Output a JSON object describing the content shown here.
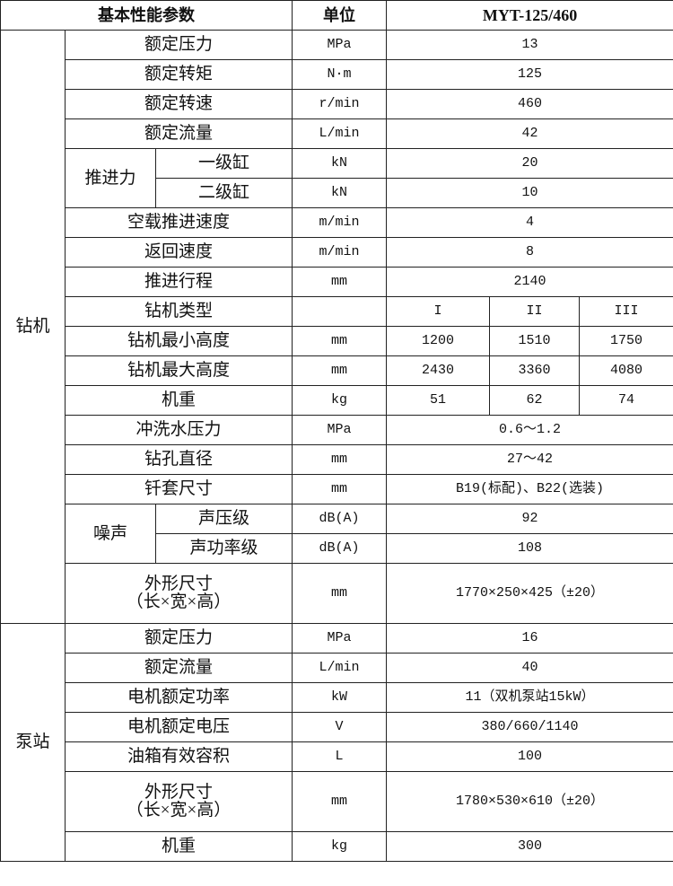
{
  "header": {
    "param": "基本性能参数",
    "unit": "单位",
    "model": "MYT-125/460"
  },
  "drill": {
    "label": "钻机",
    "rows": [
      {
        "name": "额定压力",
        "unit": "MPa",
        "values": [
          "13"
        ]
      },
      {
        "name": "额定转矩",
        "unit": "N·m",
        "values": [
          "125"
        ]
      },
      {
        "name": "额定转速",
        "unit": "r/min",
        "values": [
          "460"
        ]
      },
      {
        "name": "额定流量",
        "unit": "L/min",
        "values": [
          "42"
        ]
      },
      {
        "group": "推进力",
        "items": [
          {
            "name": "一级缸",
            "unit": "kN",
            "values": [
              "20"
            ]
          },
          {
            "name": "二级缸",
            "unit": "kN",
            "values": [
              "10"
            ]
          }
        ]
      },
      {
        "name": "空载推进速度",
        "unit": "m/min",
        "values": [
          "4"
        ]
      },
      {
        "name": "返回速度",
        "unit": "m/min",
        "values": [
          "8"
        ]
      },
      {
        "name": "推进行程",
        "unit": "mm",
        "values": [
          "2140"
        ]
      },
      {
        "name": "钻机类型",
        "unit": "",
        "values": [
          "I",
          "II",
          "III"
        ]
      },
      {
        "name": "钻机最小高度",
        "unit": "mm",
        "values": [
          "1200",
          "1510",
          "1750"
        ]
      },
      {
        "name": "钻机最大高度",
        "unit": "mm",
        "values": [
          "2430",
          "3360",
          "4080"
        ]
      },
      {
        "name": "机重",
        "unit": "kg",
        "values": [
          "51",
          "62",
          "74"
        ]
      },
      {
        "name": "冲洗水压力",
        "unit": "MPa",
        "values": [
          "0.6～1.2"
        ]
      },
      {
        "name": "钻孔直径",
        "unit": "mm",
        "values": [
          "27～42"
        ]
      },
      {
        "name": "钎套尺寸",
        "unit": "mm",
        "values": [
          "B19(标配)、B22(选装)"
        ]
      },
      {
        "group": "噪声",
        "items": [
          {
            "name": "声压级",
            "unit": "dB(A)",
            "values": [
              "92"
            ]
          },
          {
            "name": "声功率级",
            "unit": "dB(A)",
            "values": [
              "108"
            ]
          }
        ]
      },
      {
        "name": "外形尺寸",
        "name2": "（长×宽×高）",
        "unit": "mm",
        "values": [
          "1770×250×425（±20）"
        ]
      }
    ]
  },
  "pump": {
    "label": "泵站",
    "rows": [
      {
        "name": "额定压力",
        "unit": "MPa",
        "values": [
          "16"
        ]
      },
      {
        "name": "额定流量",
        "unit": "L/min",
        "values": [
          "40"
        ]
      },
      {
        "name": "电机额定功率",
        "unit": "kW",
        "values": [
          "11（双机泵站15kW）"
        ]
      },
      {
        "name": "电机额定电压",
        "unit": "V",
        "values": [
          "380/660/1140"
        ]
      },
      {
        "name": "油箱有效容积",
        "unit": "L",
        "values": [
          "100"
        ]
      },
      {
        "name": "外形尺寸",
        "name2": "（长×宽×高）",
        "unit": "mm",
        "values": [
          "1780×530×610（±20）"
        ]
      },
      {
        "name": "机重",
        "unit": "kg",
        "values": [
          "300"
        ]
      }
    ]
  }
}
